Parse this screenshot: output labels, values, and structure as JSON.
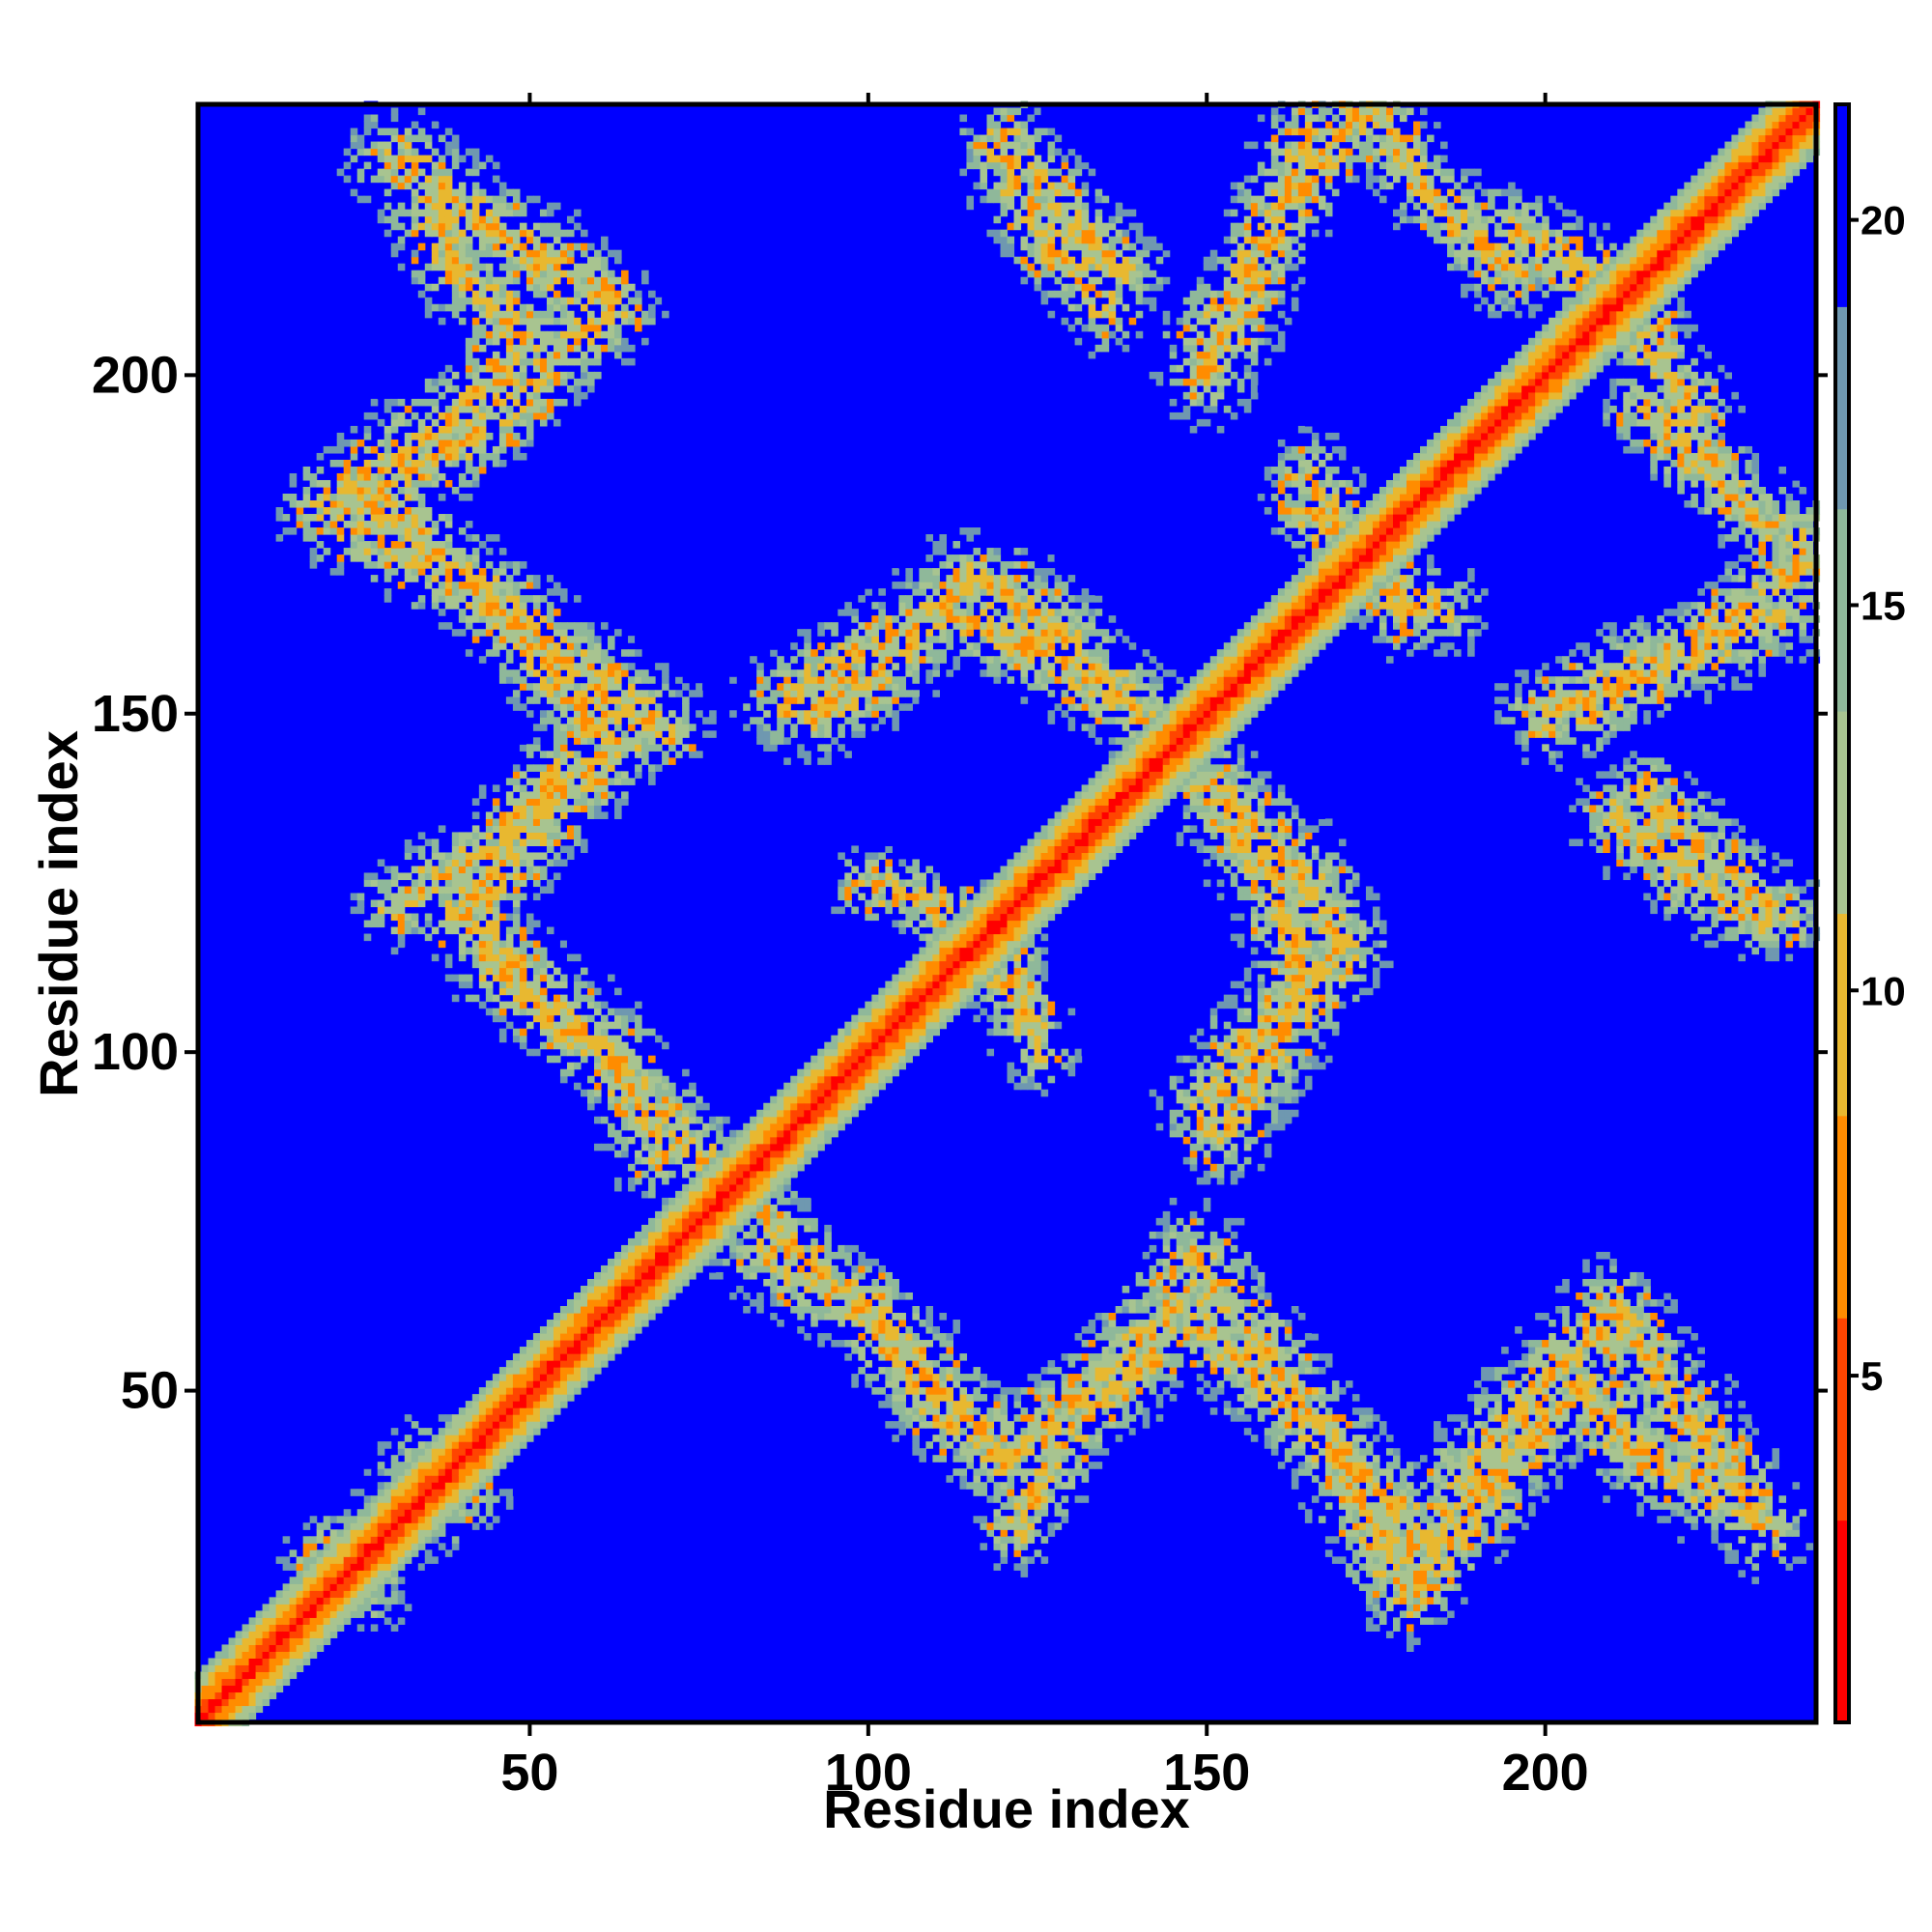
{
  "chart_data": {
    "type": "heatmap",
    "title": "",
    "xlabel": "Residue index",
    "ylabel": "Residue index",
    "xlim": [
      1,
      240
    ],
    "ylim": [
      1,
      240
    ],
    "x_ticks": [
      50,
      100,
      150,
      200
    ],
    "y_ticks": [
      50,
      100,
      150,
      200
    ],
    "x_tick_labels": [
      "50",
      "100",
      "150",
      "200"
    ],
    "y_tick_labels": [
      "50",
      "100",
      "150",
      "200"
    ],
    "colorbar": {
      "range": [
        0.5,
        21.5
      ],
      "ticks": [
        5,
        10,
        15,
        20
      ],
      "tick_labels": [
        "5",
        "10",
        "15",
        "20"
      ],
      "colors": [
        "#ff0000",
        "#ff4500",
        "#ff8c00",
        "#e8b830",
        "#a8c490",
        "#8fb89a",
        "#6f98b0",
        "#0000ff"
      ]
    },
    "background_value": 21.5,
    "diagonal": {
      "core_value": 2,
      "band_half_width": 7
    },
    "contact_regions": [
      {
        "label": "A1",
        "path": [
          [
            30,
            232
          ],
          [
            62,
            210
          ]
        ],
        "half_width": 7
      },
      {
        "label": "A2",
        "path": [
          [
            62,
            210
          ],
          [
            40,
            190
          ],
          [
            20,
            180
          ],
          [
            40,
            170
          ],
          [
            60,
            155
          ],
          [
            70,
            148
          ]
        ],
        "half_width": 7
      },
      {
        "label": "A3",
        "path": [
          [
            55,
            142
          ],
          [
            45,
            130
          ],
          [
            30,
            122
          ]
        ],
        "half_width": 6
      },
      {
        "label": "A4",
        "path": [
          [
            45,
            112
          ],
          [
            60,
            100
          ],
          [
            70,
            90
          ],
          [
            80,
            80
          ]
        ],
        "half_width": 6
      },
      {
        "label": "A5",
        "path": [
          [
            35,
            40
          ],
          [
            30,
            30
          ],
          [
            20,
            25
          ]
        ],
        "half_width": 6
      },
      {
        "label": "B1",
        "path": [
          [
            120,
            235
          ],
          [
            128,
            225
          ],
          [
            138,
            215
          ]
        ],
        "half_width": 6
      },
      {
        "label": "B2",
        "path": [
          [
            88,
            152
          ],
          [
            110,
            165
          ],
          [
            125,
            160
          ],
          [
            140,
            150
          ],
          [
            148,
            142
          ]
        ],
        "half_width": 7
      },
      {
        "label": "B3",
        "path": [
          [
            148,
            142
          ],
          [
            155,
            135
          ],
          [
            165,
            125
          ],
          [
            170,
            115
          ],
          [
            160,
            105
          ],
          [
            155,
            100
          ],
          [
            150,
            92
          ]
        ],
        "half_width": 7
      },
      {
        "label": "B4",
        "path": [
          [
            100,
            125
          ],
          [
            115,
            120
          ],
          [
            120,
            110
          ]
        ],
        "half_width": 5
      },
      {
        "label": "C1",
        "path": [
          [
            85,
            70
          ],
          [
            100,
            62
          ],
          [
            110,
            50
          ],
          [
            120,
            40
          ],
          [
            135,
            52
          ],
          [
            145,
            63
          ],
          [
            160,
            50
          ],
          [
            170,
            40
          ],
          [
            180,
            30
          ],
          [
            180,
            20
          ],
          [
            195,
            40
          ],
          [
            205,
            50
          ],
          [
            215,
            40
          ],
          [
            225,
            35
          ]
        ],
        "half_width": 7
      },
      {
        "label": "D1",
        "path": [
          [
            150,
            200
          ],
          [
            158,
            218
          ],
          [
            165,
            235
          ]
        ],
        "half_width": 7
      },
      {
        "label": "D2",
        "path": [
          [
            165,
            180
          ],
          [
            175,
            170
          ],
          [
            185,
            165
          ]
        ],
        "half_width": 6
      },
      {
        "label": "D3",
        "path": [
          [
            195,
            222
          ],
          [
            205,
            215
          ],
          [
            215,
            208
          ]
        ],
        "half_width": 6
      },
      {
        "label": "D4",
        "path": [
          [
            210,
            135
          ],
          [
            222,
            125
          ],
          [
            232,
            120
          ]
        ],
        "half_width": 6
      },
      {
        "label": "D5",
        "path": [
          [
            205,
            150
          ],
          [
            222,
            160
          ],
          [
            238,
            172
          ]
        ],
        "half_width": 6
      },
      {
        "label": "D6",
        "path": [
          [
            215,
            195
          ],
          [
            230,
            180
          ],
          [
            240,
            175
          ]
        ],
        "half_width": 6
      }
    ],
    "grid": false,
    "legend": "colorbar-right"
  }
}
